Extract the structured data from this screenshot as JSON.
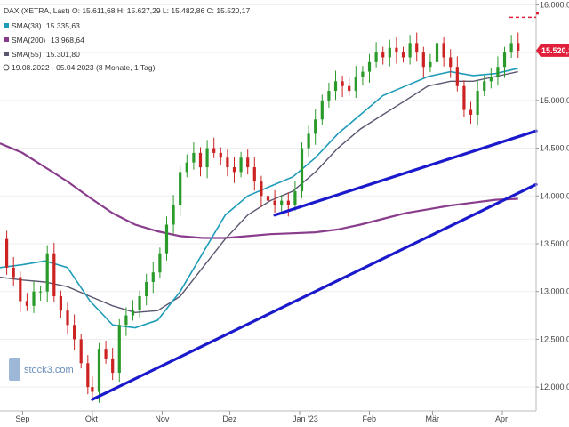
{
  "chart_data": {
    "type": "candlestick",
    "title": "DAX (XETRA, Last)",
    "legend_top_line": "DAX (XETRA, Last)  O: 15.611,68  H: 15.627,29  L: 15.482,86  C: 15.520,17",
    "indicators": [
      {
        "label": "SMA(38)",
        "value": "15.335,63",
        "color": "#1e9bb8"
      },
      {
        "label": "SMA(200)",
        "value": "13.968,64",
        "color": "#8a3c8c"
      },
      {
        "label": "SMA(55)",
        "value": "15.301,80",
        "color": "#5c5570"
      }
    ],
    "period_label": "19.08.2022 - 05.04.2023  (8 Monate, 1 Tag)",
    "last_price_label": "15.520,17",
    "last_price": 15520.17,
    "dashed_level": 15870,
    "y_ticks": [
      {
        "value": 12000,
        "label": "12.000,00"
      },
      {
        "value": 12500,
        "label": "12.500,00"
      },
      {
        "value": 13000,
        "label": "13.000,00"
      },
      {
        "value": 13500,
        "label": "13.500,00"
      },
      {
        "value": 14000,
        "label": "14.000,00"
      },
      {
        "value": 14500,
        "label": "14.500,00"
      },
      {
        "value": 15000,
        "label": "15.000,00"
      },
      {
        "value": 15500,
        "label": "15.500,00"
      },
      {
        "value": 16000,
        "label": "16.000,00"
      }
    ],
    "x_ticks": [
      {
        "label": "Sep",
        "day": 10
      },
      {
        "label": "Okt",
        "day": 41
      },
      {
        "label": "Nov",
        "day": 72
      },
      {
        "label": "Dez",
        "day": 102
      },
      {
        "label": "Jan '23",
        "day": 133
      },
      {
        "label": "Feb",
        "day": 164
      },
      {
        "label": "Mär",
        "day": 192
      },
      {
        "label": "Apr",
        "day": 223
      }
    ],
    "ylim": [
      11750,
      16050
    ],
    "xlim": [
      0,
      238
    ],
    "close_series": [
      [
        0,
        13550
      ],
      [
        3,
        13250
      ],
      [
        6,
        13150
      ],
      [
        9,
        12900
      ],
      [
        12,
        12850
      ],
      [
        15,
        13000
      ],
      [
        18,
        13000
      ],
      [
        21,
        13400
      ],
      [
        24,
        12950
      ],
      [
        27,
        12800
      ],
      [
        30,
        12650
      ],
      [
        33,
        12500
      ],
      [
        36,
        12250
      ],
      [
        39,
        12000
      ],
      [
        41,
        11950
      ],
      [
        44,
        12400
      ],
      [
        47,
        12300
      ],
      [
        50,
        12150
      ],
      [
        53,
        12650
      ],
      [
        56,
        12750
      ],
      [
        59,
        12800
      ],
      [
        62,
        12950
      ],
      [
        65,
        13100
      ],
      [
        68,
        13200
      ],
      [
        71,
        13400
      ],
      [
        74,
        13700
      ],
      [
        77,
        13900
      ],
      [
        80,
        14250
      ],
      [
        83,
        14350
      ],
      [
        86,
        14450
      ],
      [
        89,
        14300
      ],
      [
        92,
        14500
      ],
      [
        95,
        14450
      ],
      [
        98,
        14400
      ],
      [
        101,
        14300
      ],
      [
        104,
        14250
      ],
      [
        107,
        14400
      ],
      [
        110,
        14300
      ],
      [
        113,
        14150
      ],
      [
        116,
        14000
      ],
      [
        119,
        13950
      ],
      [
        122,
        13900
      ],
      [
        125,
        13950
      ],
      [
        128,
        13900
      ],
      [
        131,
        14050
      ],
      [
        134,
        14500
      ],
      [
        137,
        14650
      ],
      [
        140,
        14800
      ],
      [
        143,
        15000
      ],
      [
        146,
        15100
      ],
      [
        149,
        15200
      ],
      [
        152,
        15150
      ],
      [
        155,
        15100
      ],
      [
        158,
        15250
      ],
      [
        161,
        15300
      ],
      [
        164,
        15400
      ],
      [
        167,
        15500
      ],
      [
        170,
        15450
      ],
      [
        173,
        15550
      ],
      [
        176,
        15500
      ],
      [
        179,
        15450
      ],
      [
        182,
        15600
      ],
      [
        185,
        15500
      ],
      [
        188,
        15350
      ],
      [
        191,
        15400
      ],
      [
        194,
        15600
      ],
      [
        197,
        15450
      ],
      [
        200,
        15350
      ],
      [
        203,
        15150
      ],
      [
        206,
        14900
      ],
      [
        209,
        14850
      ],
      [
        212,
        15100
      ],
      [
        215,
        15200
      ],
      [
        218,
        15250
      ],
      [
        221,
        15350
      ],
      [
        224,
        15500
      ],
      [
        227,
        15600
      ],
      [
        230,
        15520
      ]
    ],
    "sma38": [
      [
        0,
        13250
      ],
      [
        10,
        13280
      ],
      [
        20,
        13320
      ],
      [
        30,
        13250
      ],
      [
        40,
        12900
      ],
      [
        50,
        12650
      ],
      [
        60,
        12620
      ],
      [
        70,
        12700
      ],
      [
        80,
        13000
      ],
      [
        90,
        13400
      ],
      [
        100,
        13800
      ],
      [
        110,
        14000
      ],
      [
        120,
        14100
      ],
      [
        130,
        14200
      ],
      [
        140,
        14400
      ],
      [
        150,
        14650
      ],
      [
        160,
        14850
      ],
      [
        170,
        15050
      ],
      [
        180,
        15150
      ],
      [
        190,
        15250
      ],
      [
        200,
        15300
      ],
      [
        210,
        15260
      ],
      [
        220,
        15280
      ],
      [
        230,
        15335
      ]
    ],
    "sma55": [
      [
        0,
        13150
      ],
      [
        10,
        13120
      ],
      [
        20,
        13100
      ],
      [
        30,
        13050
      ],
      [
        40,
        12950
      ],
      [
        50,
        12850
      ],
      [
        60,
        12780
      ],
      [
        70,
        12800
      ],
      [
        80,
        12950
      ],
      [
        90,
        13250
      ],
      [
        100,
        13550
      ],
      [
        110,
        13800
      ],
      [
        120,
        13950
      ],
      [
        130,
        14050
      ],
      [
        140,
        14250
      ],
      [
        150,
        14500
      ],
      [
        160,
        14700
      ],
      [
        170,
        14850
      ],
      [
        180,
        15000
      ],
      [
        190,
        15150
      ],
      [
        200,
        15200
      ],
      [
        210,
        15200
      ],
      [
        220,
        15250
      ],
      [
        230,
        15300
      ]
    ],
    "sma200": [
      [
        0,
        14550
      ],
      [
        10,
        14450
      ],
      [
        20,
        14300
      ],
      [
        30,
        14150
      ],
      [
        40,
        13980
      ],
      [
        50,
        13820
      ],
      [
        60,
        13700
      ],
      [
        70,
        13630
      ],
      [
        80,
        13580
      ],
      [
        90,
        13560
      ],
      [
        100,
        13560
      ],
      [
        110,
        13580
      ],
      [
        120,
        13600
      ],
      [
        130,
        13610
      ],
      [
        140,
        13620
      ],
      [
        150,
        13650
      ],
      [
        160,
        13700
      ],
      [
        170,
        13760
      ],
      [
        180,
        13820
      ],
      [
        190,
        13860
      ],
      [
        200,
        13900
      ],
      [
        210,
        13930
      ],
      [
        220,
        13960
      ],
      [
        230,
        13970
      ]
    ],
    "trendlines": [
      {
        "from": [
          41,
          11870
        ],
        "to": [
          238,
          14120
        ]
      },
      {
        "from": [
          122,
          13800
        ],
        "to": [
          238,
          14680
        ]
      }
    ],
    "watermark": "stock3.com"
  }
}
